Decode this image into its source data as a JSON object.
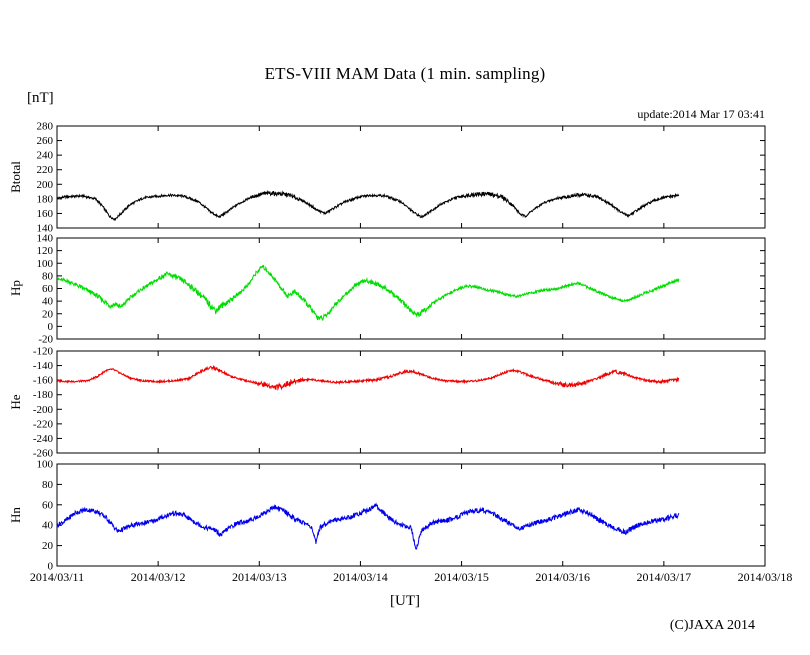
{
  "chart_data": {
    "type": "line",
    "title": "ETS-VIII MAM Data (1 min. sampling)",
    "unit": "[nT]",
    "update_text": "update:2014 Mar 17 03:41",
    "xlabel": "[UT]",
    "copyright": "(C)JAXA 2014",
    "sampling_interval": "1 min",
    "sample_step_days": 0.004,
    "x_axis": {
      "tick_labels": [
        "2014/03/11",
        "2014/03/12",
        "2014/03/13",
        "2014/03/14",
        "2014/03/15",
        "2014/03/16",
        "2014/03/17",
        "2014/03/18"
      ],
      "range_days": [
        0,
        7
      ]
    },
    "panels": [
      {
        "label": "Btotal",
        "color": "#000000",
        "ylim": [
          140,
          280
        ],
        "ytick_step": 20,
        "t_end": 6.15,
        "keypoints": [
          [
            0.0,
            181
          ],
          [
            0.1,
            183
          ],
          [
            0.25,
            184
          ],
          [
            0.38,
            180
          ],
          [
            0.45,
            170
          ],
          [
            0.52,
            156
          ],
          [
            0.57,
            152
          ],
          [
            0.62,
            158
          ],
          [
            0.72,
            172
          ],
          [
            0.85,
            181
          ],
          [
            0.95,
            183
          ],
          [
            1.1,
            185
          ],
          [
            1.25,
            184
          ],
          [
            1.4,
            176
          ],
          [
            1.52,
            162
          ],
          [
            1.6,
            155
          ],
          [
            1.66,
            160
          ],
          [
            1.78,
            172
          ],
          [
            1.9,
            181
          ],
          [
            2.0,
            186
          ],
          [
            2.1,
            188
          ],
          [
            2.2,
            187
          ],
          [
            2.3,
            185
          ],
          [
            2.45,
            176
          ],
          [
            2.58,
            164
          ],
          [
            2.65,
            160
          ],
          [
            2.72,
            166
          ],
          [
            2.85,
            176
          ],
          [
            3.0,
            183
          ],
          [
            3.1,
            185
          ],
          [
            3.25,
            184
          ],
          [
            3.4,
            176
          ],
          [
            3.52,
            162
          ],
          [
            3.6,
            155
          ],
          [
            3.67,
            161
          ],
          [
            3.8,
            173
          ],
          [
            3.95,
            182
          ],
          [
            4.1,
            186
          ],
          [
            4.25,
            187
          ],
          [
            4.4,
            183
          ],
          [
            4.5,
            172
          ],
          [
            4.58,
            159
          ],
          [
            4.63,
            156
          ],
          [
            4.7,
            164
          ],
          [
            4.82,
            175
          ],
          [
            4.95,
            181
          ],
          [
            5.1,
            184
          ],
          [
            5.2,
            186
          ],
          [
            5.35,
            182
          ],
          [
            5.48,
            172
          ],
          [
            5.58,
            161
          ],
          [
            5.65,
            157
          ],
          [
            5.72,
            163
          ],
          [
            5.85,
            174
          ],
          [
            5.95,
            180
          ],
          [
            6.05,
            183
          ],
          [
            6.15,
            185
          ]
        ],
        "noise_env": [
          [
            0,
            1.5
          ],
          [
            1.9,
            1.5
          ],
          [
            2.05,
            3
          ],
          [
            2.3,
            3
          ],
          [
            2.45,
            1.5
          ],
          [
            3.95,
            1.5
          ],
          [
            4.1,
            3
          ],
          [
            4.4,
            3
          ],
          [
            4.55,
            1.5
          ],
          [
            4.95,
            1.5
          ],
          [
            5.1,
            2.5
          ],
          [
            5.3,
            2.5
          ],
          [
            5.45,
            1.5
          ],
          [
            6.15,
            1.8
          ]
        ]
      },
      {
        "label": "Hp",
        "color": "#00dd00",
        "ylim": [
          -20,
          140
        ],
        "ytick_step": 20,
        "t_end": 6.15,
        "keypoints": [
          [
            0.0,
            75
          ],
          [
            0.1,
            72
          ],
          [
            0.2,
            65
          ],
          [
            0.3,
            57
          ],
          [
            0.4,
            48
          ],
          [
            0.48,
            38
          ],
          [
            0.53,
            32
          ],
          [
            0.58,
            36
          ],
          [
            0.63,
            30
          ],
          [
            0.7,
            42
          ],
          [
            0.8,
            55
          ],
          [
            0.9,
            65
          ],
          [
            1.0,
            75
          ],
          [
            1.08,
            83
          ],
          [
            1.15,
            80
          ],
          [
            1.25,
            72
          ],
          [
            1.35,
            60
          ],
          [
            1.45,
            45
          ],
          [
            1.52,
            33
          ],
          [
            1.57,
            25
          ],
          [
            1.62,
            32
          ],
          [
            1.7,
            40
          ],
          [
            1.8,
            52
          ],
          [
            1.9,
            68
          ],
          [
            1.97,
            85
          ],
          [
            2.03,
            95
          ],
          [
            2.08,
            88
          ],
          [
            2.15,
            75
          ],
          [
            2.22,
            60
          ],
          [
            2.28,
            48
          ],
          [
            2.35,
            55
          ],
          [
            2.42,
            45
          ],
          [
            2.5,
            30
          ],
          [
            2.57,
            15
          ],
          [
            2.62,
            12
          ],
          [
            2.68,
            20
          ],
          [
            2.75,
            35
          ],
          [
            2.85,
            50
          ],
          [
            2.95,
            65
          ],
          [
            3.05,
            73
          ],
          [
            3.15,
            68
          ],
          [
            3.25,
            60
          ],
          [
            3.35,
            48
          ],
          [
            3.45,
            33
          ],
          [
            3.52,
            22
          ],
          [
            3.58,
            18
          ],
          [
            3.65,
            28
          ],
          [
            3.75,
            40
          ],
          [
            3.85,
            50
          ],
          [
            3.95,
            58
          ],
          [
            4.05,
            64
          ],
          [
            4.15,
            62
          ],
          [
            4.25,
            58
          ],
          [
            4.35,
            55
          ],
          [
            4.45,
            50
          ],
          [
            4.55,
            48
          ],
          [
            4.65,
            52
          ],
          [
            4.75,
            55
          ],
          [
            4.85,
            58
          ],
          [
            4.95,
            60
          ],
          [
            5.05,
            65
          ],
          [
            5.15,
            68
          ],
          [
            5.25,
            62
          ],
          [
            5.35,
            55
          ],
          [
            5.45,
            48
          ],
          [
            5.55,
            42
          ],
          [
            5.62,
            40
          ],
          [
            5.7,
            45
          ],
          [
            5.8,
            52
          ],
          [
            5.9,
            58
          ],
          [
            6.0,
            64
          ],
          [
            6.08,
            70
          ],
          [
            6.15,
            74
          ]
        ],
        "noise_env": [
          [
            0,
            2.5
          ],
          [
            0.45,
            4
          ],
          [
            0.65,
            4
          ],
          [
            0.8,
            2.5
          ],
          [
            1.45,
            5
          ],
          [
            1.65,
            5
          ],
          [
            1.8,
            2.5
          ],
          [
            2.4,
            4
          ],
          [
            2.7,
            4
          ],
          [
            2.85,
            2.5
          ],
          [
            3.45,
            4
          ],
          [
            3.65,
            4
          ],
          [
            3.8,
            2
          ],
          [
            6.15,
            2
          ]
        ]
      },
      {
        "label": "He",
        "color": "#ee0000",
        "ylim": [
          -260,
          -120
        ],
        "ytick_step": 20,
        "t_end": 6.15,
        "keypoints": [
          [
            0.0,
            -161
          ],
          [
            0.15,
            -162
          ],
          [
            0.3,
            -161
          ],
          [
            0.4,
            -155
          ],
          [
            0.48,
            -147
          ],
          [
            0.55,
            -145
          ],
          [
            0.62,
            -150
          ],
          [
            0.72,
            -157
          ],
          [
            0.85,
            -161
          ],
          [
            1.0,
            -162
          ],
          [
            1.15,
            -161
          ],
          [
            1.3,
            -158
          ],
          [
            1.4,
            -150
          ],
          [
            1.48,
            -144
          ],
          [
            1.55,
            -143
          ],
          [
            1.62,
            -148
          ],
          [
            1.72,
            -155
          ],
          [
            1.85,
            -160
          ],
          [
            1.95,
            -163
          ],
          [
            2.05,
            -166
          ],
          [
            2.15,
            -170
          ],
          [
            2.22,
            -168
          ],
          [
            2.3,
            -164
          ],
          [
            2.4,
            -160
          ],
          [
            2.5,
            -159
          ],
          [
            2.62,
            -161
          ],
          [
            2.75,
            -163
          ],
          [
            2.9,
            -162
          ],
          [
            3.0,
            -161
          ],
          [
            3.15,
            -160
          ],
          [
            3.3,
            -155
          ],
          [
            3.42,
            -149
          ],
          [
            3.5,
            -147
          ],
          [
            3.58,
            -151
          ],
          [
            3.7,
            -157
          ],
          [
            3.85,
            -161
          ],
          [
            4.0,
            -162
          ],
          [
            4.15,
            -161
          ],
          [
            4.3,
            -157
          ],
          [
            4.42,
            -150
          ],
          [
            4.5,
            -146
          ],
          [
            4.58,
            -149
          ],
          [
            4.7,
            -155
          ],
          [
            4.85,
            -161
          ],
          [
            4.95,
            -165
          ],
          [
            5.05,
            -167
          ],
          [
            5.15,
            -166
          ],
          [
            5.25,
            -162
          ],
          [
            5.35,
            -157
          ],
          [
            5.45,
            -151
          ],
          [
            5.52,
            -148
          ],
          [
            5.6,
            -151
          ],
          [
            5.72,
            -157
          ],
          [
            5.85,
            -161
          ],
          [
            5.95,
            -162
          ],
          [
            6.05,
            -161
          ],
          [
            6.15,
            -159
          ]
        ],
        "noise_env": [
          [
            0,
            1.2
          ],
          [
            1.35,
            1.2
          ],
          [
            1.45,
            2.5
          ],
          [
            1.6,
            2.5
          ],
          [
            1.7,
            1.2
          ],
          [
            1.95,
            1.5
          ],
          [
            2.05,
            4
          ],
          [
            2.35,
            4
          ],
          [
            2.5,
            1.2
          ],
          [
            3.4,
            2
          ],
          [
            3.6,
            2
          ],
          [
            3.7,
            1.2
          ],
          [
            4.85,
            1.5
          ],
          [
            4.95,
            3
          ],
          [
            5.2,
            3
          ],
          [
            5.3,
            1.5
          ],
          [
            5.4,
            2.5
          ],
          [
            5.6,
            2.5
          ],
          [
            5.7,
            1.2
          ],
          [
            5.95,
            2
          ],
          [
            6.15,
            2.5
          ]
        ]
      },
      {
        "label": "Hn",
        "color": "#0000ee",
        "ylim": [
          0,
          100
        ],
        "ytick_step": 20,
        "t_end": 6.15,
        "keypoints": [
          [
            0.0,
            40
          ],
          [
            0.08,
            44
          ],
          [
            0.18,
            52
          ],
          [
            0.28,
            55
          ],
          [
            0.38,
            54
          ],
          [
            0.48,
            48
          ],
          [
            0.55,
            40
          ],
          [
            0.6,
            34
          ],
          [
            0.65,
            36
          ],
          [
            0.75,
            40
          ],
          [
            0.85,
            42
          ],
          [
            0.95,
            44
          ],
          [
            1.05,
            48
          ],
          [
            1.15,
            52
          ],
          [
            1.25,
            50
          ],
          [
            1.35,
            44
          ],
          [
            1.45,
            38
          ],
          [
            1.55,
            36
          ],
          [
            1.62,
            30
          ],
          [
            1.68,
            36
          ],
          [
            1.78,
            42
          ],
          [
            1.88,
            44
          ],
          [
            1.98,
            48
          ],
          [
            2.08,
            54
          ],
          [
            2.15,
            58
          ],
          [
            2.25,
            54
          ],
          [
            2.35,
            46
          ],
          [
            2.45,
            42
          ],
          [
            2.52,
            38
          ],
          [
            2.56,
            22
          ],
          [
            2.6,
            38
          ],
          [
            2.7,
            44
          ],
          [
            2.8,
            46
          ],
          [
            2.9,
            48
          ],
          [
            3.0,
            52
          ],
          [
            3.1,
            56
          ],
          [
            3.15,
            60
          ],
          [
            3.2,
            54
          ],
          [
            3.3,
            46
          ],
          [
            3.4,
            40
          ],
          [
            3.5,
            38
          ],
          [
            3.55,
            16
          ],
          [
            3.6,
            34
          ],
          [
            3.7,
            42
          ],
          [
            3.8,
            44
          ],
          [
            3.9,
            46
          ],
          [
            4.0,
            50
          ],
          [
            4.1,
            54
          ],
          [
            4.2,
            55
          ],
          [
            4.3,
            52
          ],
          [
            4.4,
            46
          ],
          [
            4.5,
            40
          ],
          [
            4.58,
            37
          ],
          [
            4.65,
            40
          ],
          [
            4.75,
            43
          ],
          [
            4.85,
            45
          ],
          [
            4.95,
            48
          ],
          [
            5.05,
            52
          ],
          [
            5.15,
            55
          ],
          [
            5.25,
            52
          ],
          [
            5.35,
            46
          ],
          [
            5.45,
            40
          ],
          [
            5.55,
            36
          ],
          [
            5.62,
            33
          ],
          [
            5.7,
            38
          ],
          [
            5.8,
            42
          ],
          [
            5.9,
            44
          ],
          [
            6.0,
            46
          ],
          [
            6.08,
            48
          ],
          [
            6.15,
            50
          ]
        ],
        "noise_env": [
          [
            0,
            2.3
          ],
          [
            6.15,
            2.3
          ]
        ]
      }
    ]
  }
}
